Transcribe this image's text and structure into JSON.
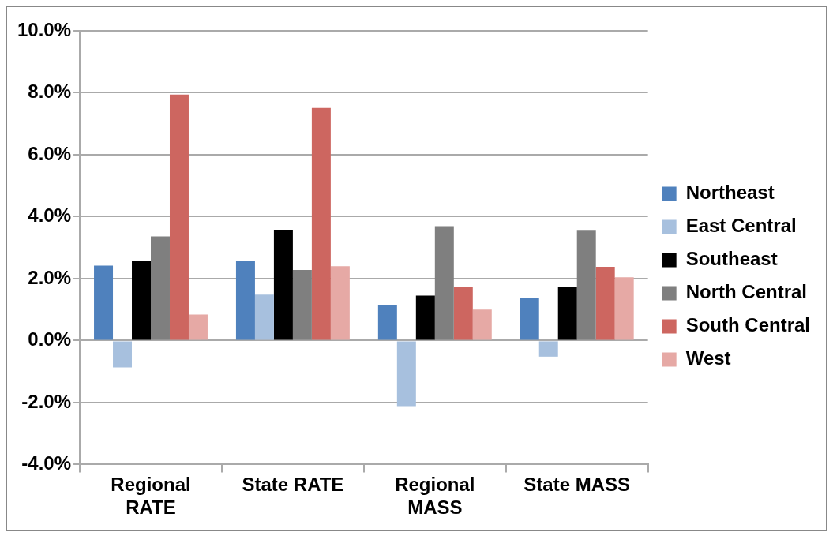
{
  "chart_data": {
    "type": "bar",
    "categories": [
      "Regional RATE",
      "State RATE",
      "Regional MASS",
      "State MASS"
    ],
    "series": [
      {
        "name": "Northeast",
        "color": "#4f81bd",
        "values": [
          2.42,
          2.58,
          1.15,
          1.36
        ]
      },
      {
        "name": "East Central",
        "color": "#a7c0de",
        "values": [
          -0.87,
          1.48,
          -2.12,
          -0.52
        ]
      },
      {
        "name": "Southeast",
        "color": "#000000",
        "values": [
          2.58,
          3.58,
          1.45,
          1.73
        ]
      },
      {
        "name": "North Central",
        "color": "#7f7f7f",
        "values": [
          3.36,
          2.28,
          3.69,
          3.57
        ]
      },
      {
        "name": "South Central",
        "color": "#cd6660",
        "values": [
          7.94,
          7.51,
          1.73,
          2.38
        ]
      },
      {
        "name": "West",
        "color": "#e6a9a5",
        "values": [
          0.84,
          2.4,
          1.0,
          2.04
        ]
      }
    ],
    "ylim": [
      -4,
      10
    ],
    "yticks": [
      {
        "value": -4,
        "label": "-4.0%"
      },
      {
        "value": -2,
        "label": "-2.0%"
      },
      {
        "value": 0,
        "label": "0.0%"
      },
      {
        "value": 2,
        "label": "2.0%"
      },
      {
        "value": 4,
        "label": "4.0%"
      },
      {
        "value": 6,
        "label": "6.0%"
      },
      {
        "value": 8,
        "label": "8.0%"
      },
      {
        "value": 10,
        "label": "10.0%"
      }
    ],
    "grid": "y",
    "legend": "right"
  }
}
